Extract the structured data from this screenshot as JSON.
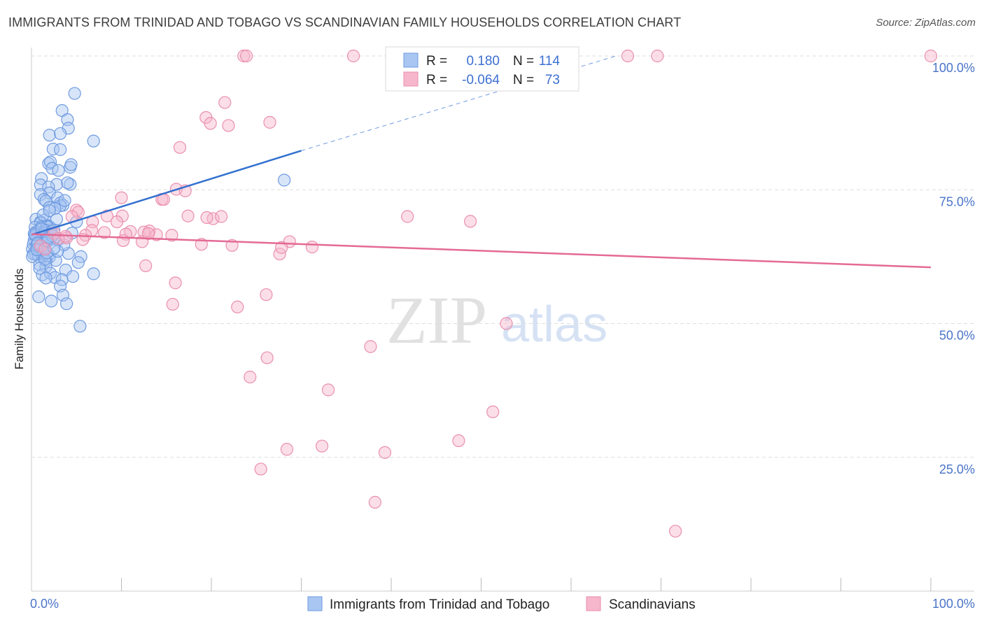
{
  "header": {
    "title": "IMMIGRANTS FROM TRINIDAD AND TOBAGO VS SCANDINAVIAN FAMILY HOUSEHOLDS CORRELATION CHART",
    "source": "Source: ZipAtlas.com"
  },
  "watermark": {
    "zip": "ZIP",
    "atlas": "atlas"
  },
  "legend": {
    "series": [
      {
        "r_label": "R =",
        "r_value": "0.180",
        "n_label": "N =",
        "n_value": "114"
      },
      {
        "r_label": "R =",
        "r_value": "-0.064",
        "n_label": "N =",
        "n_value": "73"
      }
    ]
  },
  "bottom_legend": {
    "items": [
      "Immigrants from Trinidad and Tobago",
      "Scandinavians"
    ]
  },
  "chart_data": {
    "type": "scatter",
    "title": "IMMIGRANTS FROM TRINIDAD AND TOBAGO VS SCANDINAVIAN FAMILY HOUSEHOLDS CORRELATION CHART",
    "xlabel": "",
    "ylabel": "Family Households",
    "xlim": [
      0,
      100
    ],
    "ylim": [
      0,
      100
    ],
    "x_tick_labels": [
      "0.0%",
      "100.0%"
    ],
    "y_tick_labels": [
      "25.0%",
      "50.0%",
      "75.0%",
      "100.0%"
    ],
    "y_tick_values": [
      25,
      50,
      75,
      100
    ],
    "grid": "horizontal dashed",
    "colors": {
      "blue_fill": "#a9c6f2",
      "blue_stroke": "#6f9be0",
      "blue_line": "#3371d0",
      "pink_fill": "#f6b6cb",
      "pink_stroke": "#ea8fae",
      "pink_line": "#e46a96",
      "accent_text": "#4a74c9"
    },
    "series": [
      {
        "name": "Immigrants from Trinidad and Tobago",
        "color": "#6f9be0",
        "trend": {
          "x": [
            0,
            30
          ],
          "y": [
            66.6,
            82.3
          ],
          "dashed_to": [
            65,
            100
          ]
        },
        "points": [
          [
            4.8,
            93.0
          ],
          [
            3.4,
            89.8
          ],
          [
            4.0,
            88.1
          ],
          [
            4.1,
            86.5
          ],
          [
            2.0,
            85.2
          ],
          [
            3.2,
            85.5
          ],
          [
            6.9,
            84.1
          ],
          [
            2.4,
            82.6
          ],
          [
            3.2,
            82.5
          ],
          [
            1.9,
            79.9
          ],
          [
            2.1,
            80.2
          ],
          [
            4.3,
            79.2
          ],
          [
            2.3,
            79.0
          ],
          [
            3.0,
            78.6
          ],
          [
            4.4,
            79.7
          ],
          [
            1.1,
            77.1
          ],
          [
            2.8,
            76.0
          ],
          [
            4.3,
            76.0
          ],
          [
            4.0,
            76.3
          ],
          [
            1.0,
            75.9
          ],
          [
            1.9,
            75.5
          ],
          [
            2.0,
            74.4
          ],
          [
            1.0,
            74.1
          ],
          [
            1.4,
            73.2
          ],
          [
            2.9,
            73.5
          ],
          [
            1.6,
            72.9
          ],
          [
            3.2,
            72.5
          ],
          [
            3.5,
            72.1
          ],
          [
            3.2,
            72.0
          ],
          [
            2.0,
            71.7
          ],
          [
            2.6,
            71.5
          ],
          [
            0.5,
            69.5
          ],
          [
            1.5,
            69.4
          ],
          [
            1.0,
            69.0
          ],
          [
            5.0,
            69.0
          ],
          [
            1.0,
            68.8
          ],
          [
            1.8,
            68.3
          ],
          [
            0.4,
            68.0
          ],
          [
            1.1,
            68.0
          ],
          [
            1.7,
            68.1
          ],
          [
            2.0,
            68.1
          ],
          [
            1.6,
            67.4
          ],
          [
            2.2,
            67.2
          ],
          [
            0.5,
            67.1
          ],
          [
            1.3,
            66.9
          ],
          [
            0.3,
            66.8
          ],
          [
            2.2,
            66.8
          ],
          [
            4.5,
            66.9
          ],
          [
            0.4,
            66.3
          ],
          [
            1.0,
            66.1
          ],
          [
            1.2,
            66.5
          ],
          [
            1.8,
            66.1
          ],
          [
            0.6,
            65.7
          ],
          [
            2.4,
            65.8
          ],
          [
            3.0,
            65.7
          ],
          [
            0.3,
            65.6
          ],
          [
            0.7,
            65.2
          ],
          [
            1.6,
            65.0
          ],
          [
            0.2,
            64.8
          ],
          [
            0.5,
            64.5
          ],
          [
            1.0,
            64.2
          ],
          [
            1.2,
            64.4
          ],
          [
            1.4,
            64.0
          ],
          [
            0.1,
            63.9
          ],
          [
            0.8,
            63.5
          ],
          [
            1.3,
            63.3
          ],
          [
            0.4,
            63.1
          ],
          [
            0.2,
            63.0
          ],
          [
            1.9,
            62.8
          ],
          [
            4.1,
            63.1
          ],
          [
            0.8,
            62.5
          ],
          [
            1.2,
            62.6
          ],
          [
            2.0,
            62.4
          ],
          [
            0.1,
            62.5
          ],
          [
            2.7,
            61.8
          ],
          [
            5.5,
            62.5
          ],
          [
            1.6,
            61.7
          ],
          [
            5.2,
            61.4
          ],
          [
            0.9,
            61.0
          ],
          [
            1.6,
            60.6
          ],
          [
            3.8,
            60.0
          ],
          [
            6.9,
            59.3
          ],
          [
            1.2,
            59.1
          ],
          [
            2.1,
            59.4
          ],
          [
            2.6,
            58.6
          ],
          [
            1.6,
            58.5
          ],
          [
            3.4,
            58.2
          ],
          [
            4.6,
            58.8
          ],
          [
            3.2,
            57.0
          ],
          [
            3.5,
            55.3
          ],
          [
            0.8,
            55.0
          ],
          [
            2.2,
            54.2
          ],
          [
            3.9,
            53.7
          ],
          [
            5.4,
            49.5
          ],
          [
            28.1,
            76.8
          ],
          [
            1.5,
            64.0
          ],
          [
            0.6,
            64.8
          ],
          [
            2.3,
            66.4
          ],
          [
            1.5,
            62.0
          ],
          [
            3.6,
            64.7
          ],
          [
            2.5,
            67.5
          ],
          [
            0.9,
            60.3
          ],
          [
            1.7,
            63.2
          ],
          [
            0.4,
            66.6
          ],
          [
            2.8,
            69.5
          ],
          [
            1.3,
            70.3
          ],
          [
            3.7,
            73.0
          ],
          [
            2.0,
            71.1
          ],
          [
            0.7,
            65.0
          ],
          [
            1.1,
            67.7
          ],
          [
            2.9,
            63.5
          ],
          [
            0.6,
            63.8
          ],
          [
            1.8,
            65.5
          ],
          [
            2.5,
            64.1
          ]
        ]
      },
      {
        "name": "Scandinavians",
        "color": "#ea8fae",
        "trend": {
          "x": [
            0,
            100
          ],
          "y": [
            66.7,
            60.5
          ]
        },
        "points": [
          [
            23.6,
            100.0
          ],
          [
            23.9,
            100.0
          ],
          [
            35.8,
            100.0
          ],
          [
            66.3,
            100.0
          ],
          [
            69.6,
            100.0
          ],
          [
            100.0,
            100.0
          ],
          [
            21.5,
            91.3
          ],
          [
            19.4,
            88.5
          ],
          [
            26.5,
            87.6
          ],
          [
            21.9,
            87.0
          ],
          [
            19.9,
            87.4
          ],
          [
            16.5,
            82.9
          ],
          [
            16.1,
            75.1
          ],
          [
            10.0,
            73.5
          ],
          [
            14.5,
            73.2
          ],
          [
            17.1,
            74.8
          ],
          [
            14.7,
            73.2
          ],
          [
            5.0,
            71.2
          ],
          [
            5.2,
            70.8
          ],
          [
            10.1,
            70.1
          ],
          [
            6.8,
            69.0
          ],
          [
            8.4,
            70.1
          ],
          [
            20.2,
            69.6
          ],
          [
            21.1,
            70.0
          ],
          [
            17.4,
            70.1
          ],
          [
            41.8,
            70.0
          ],
          [
            48.8,
            69.1
          ],
          [
            6.7,
            67.4
          ],
          [
            11.0,
            67.2
          ],
          [
            13.1,
            67.3
          ],
          [
            12.5,
            67.1
          ],
          [
            2.5,
            66.9
          ],
          [
            8.1,
            67.0
          ],
          [
            6.0,
            66.5
          ],
          [
            10.5,
            66.7
          ],
          [
            13.9,
            66.6
          ],
          [
            10.2,
            65.5
          ],
          [
            12.3,
            65.3
          ],
          [
            5.7,
            65.7
          ],
          [
            3.9,
            66.0
          ],
          [
            3.0,
            65.9
          ],
          [
            28.7,
            65.3
          ],
          [
            31.2,
            64.3
          ],
          [
            18.9,
            64.8
          ],
          [
            22.3,
            64.6
          ],
          [
            27.6,
            63.0
          ],
          [
            27.8,
            64.2
          ],
          [
            1.0,
            64.5
          ],
          [
            1.5,
            63.9
          ],
          [
            12.7,
            60.8
          ],
          [
            16.0,
            57.6
          ],
          [
            26.1,
            55.4
          ],
          [
            15.7,
            53.6
          ],
          [
            22.9,
            53.1
          ],
          [
            52.8,
            50.0
          ],
          [
            37.7,
            45.7
          ],
          [
            26.2,
            43.6
          ],
          [
            24.3,
            40.0
          ],
          [
            33.0,
            37.6
          ],
          [
            51.3,
            33.5
          ],
          [
            47.5,
            28.1
          ],
          [
            32.3,
            27.1
          ],
          [
            28.4,
            26.5
          ],
          [
            39.3,
            25.9
          ],
          [
            25.5,
            22.8
          ],
          [
            38.2,
            16.6
          ],
          [
            71.6,
            11.2
          ],
          [
            4.5,
            70.0
          ],
          [
            9.5,
            69.0
          ],
          [
            13.0,
            66.8
          ],
          [
            3.8,
            66.3
          ],
          [
            19.5,
            69.8
          ],
          [
            15.6,
            66.5
          ]
        ]
      }
    ]
  }
}
